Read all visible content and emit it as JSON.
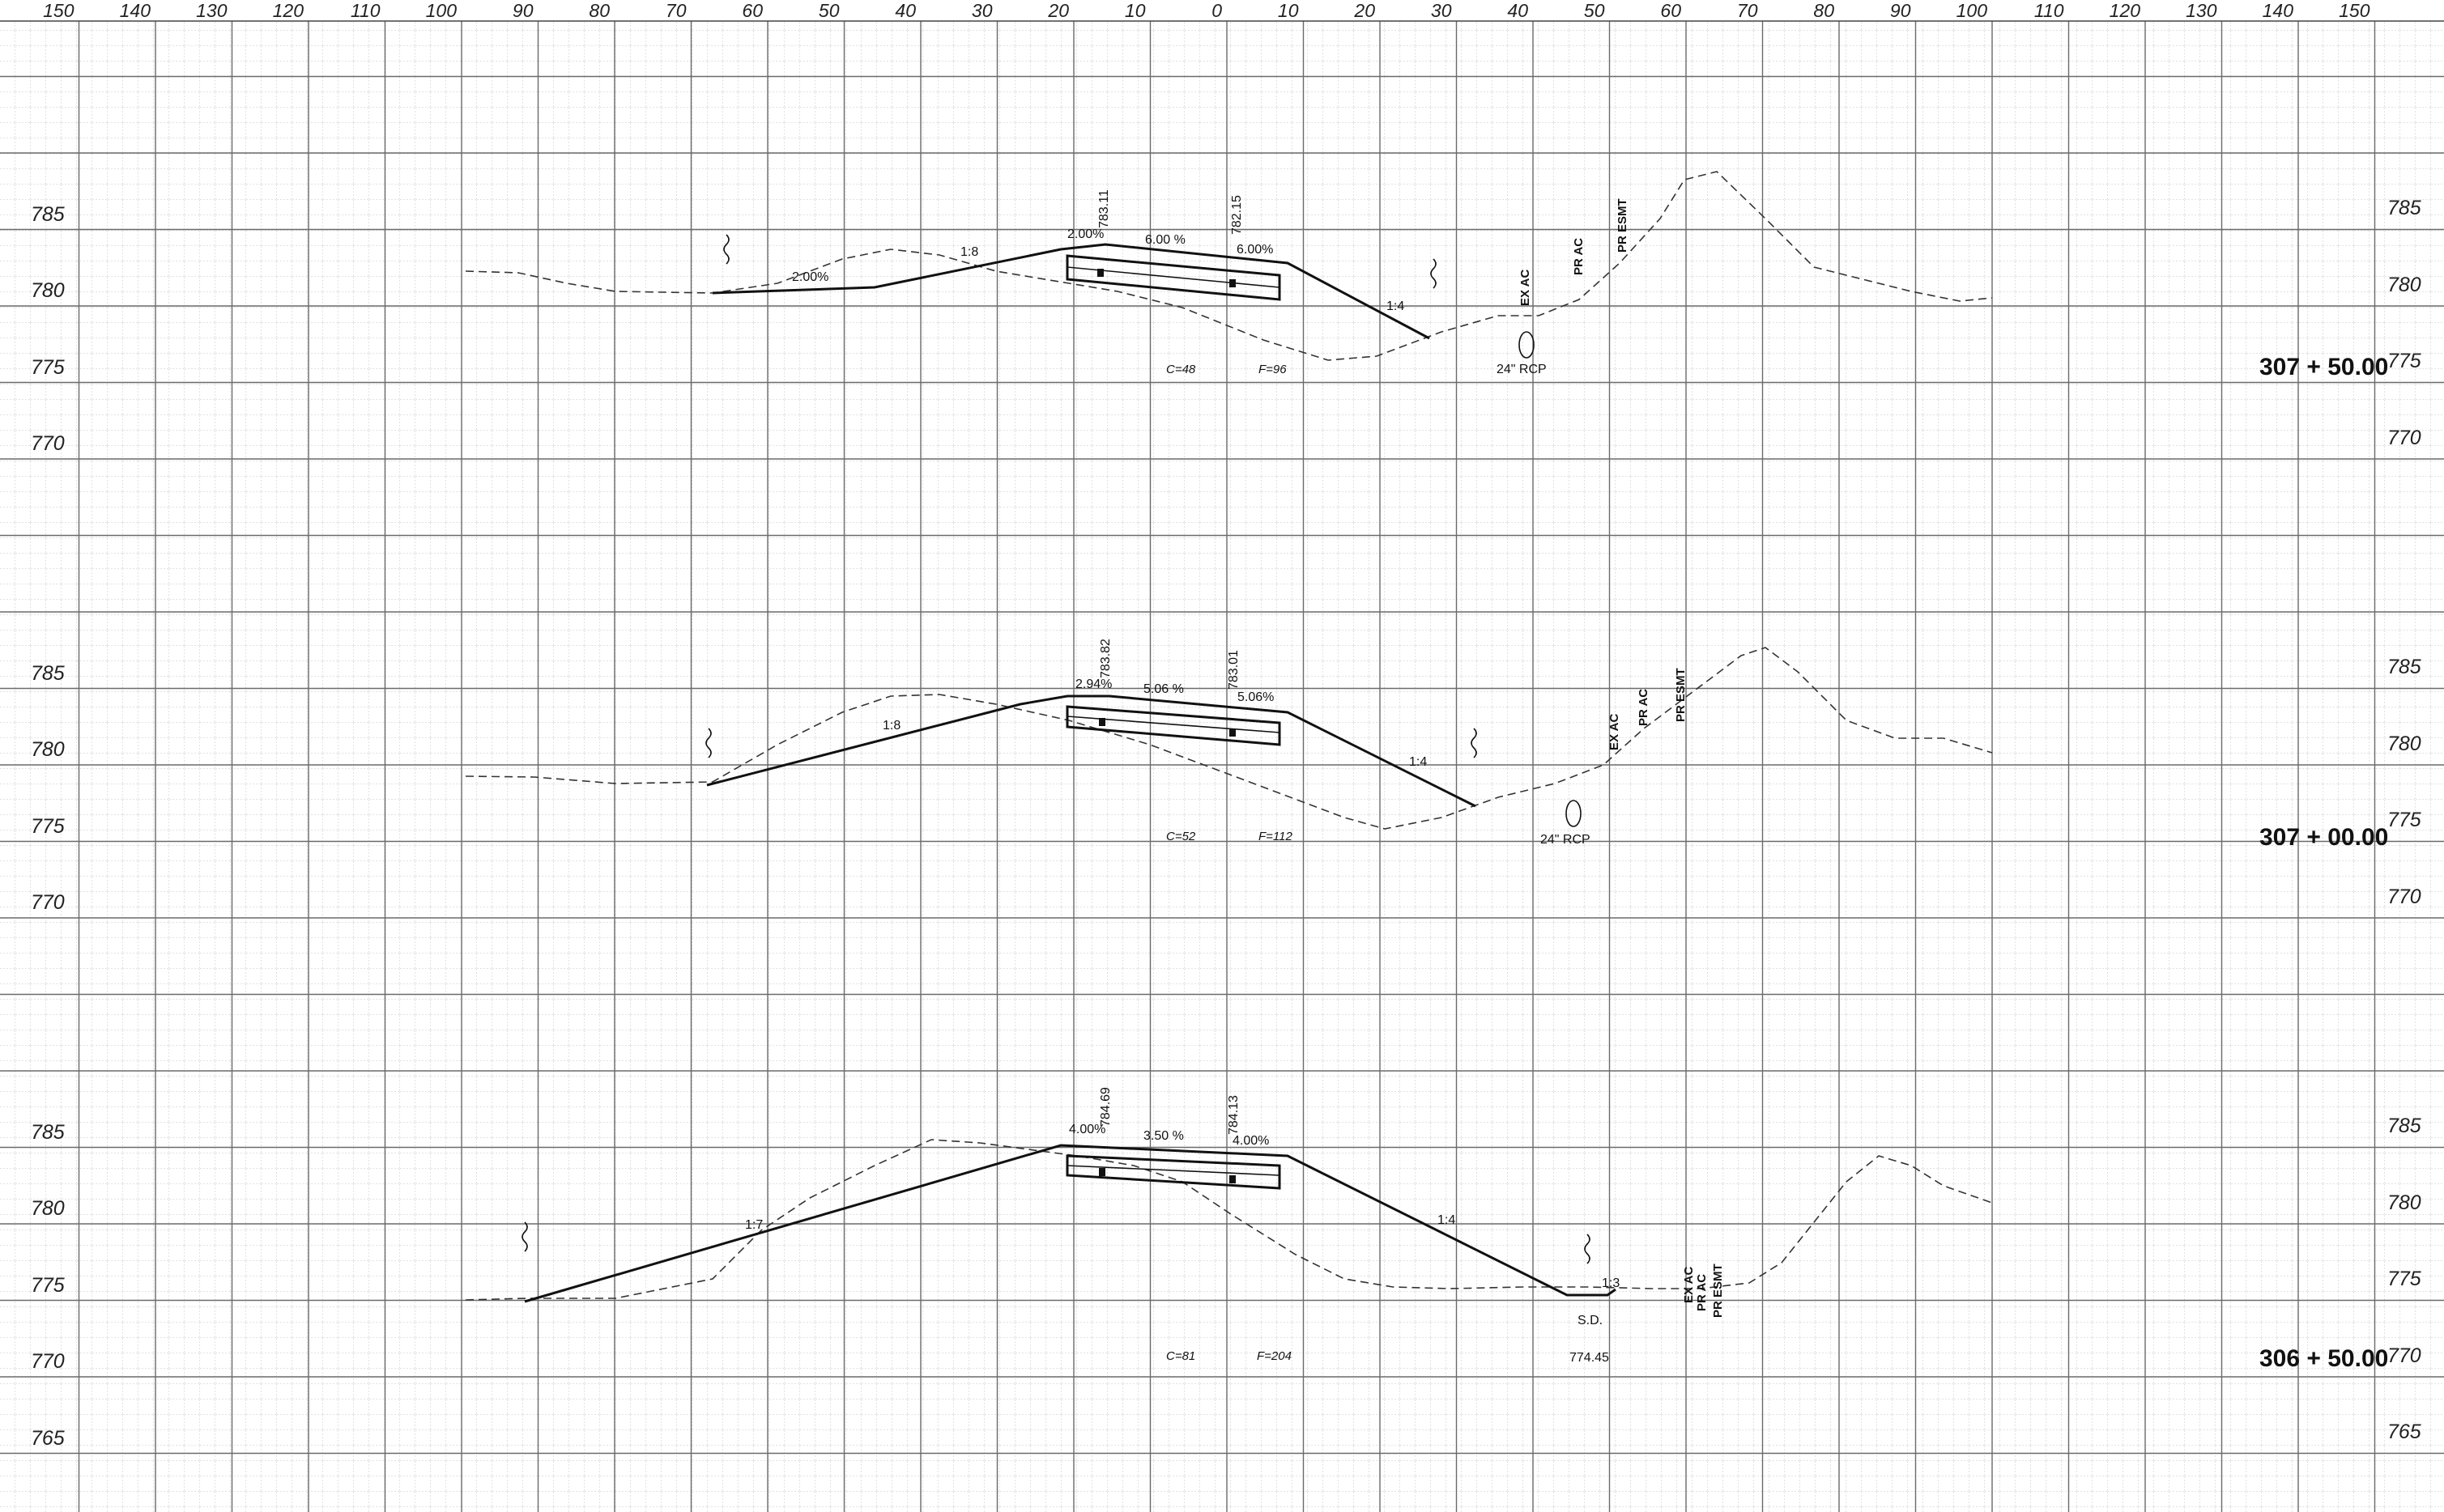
{
  "sheet": {
    "offset_scale": [
      "150",
      "140",
      "130",
      "120",
      "110",
      "100",
      "90",
      "80",
      "70",
      "60",
      "50",
      "40",
      "30",
      "20",
      "10",
      "0",
      "10",
      "20",
      "30",
      "40",
      "50",
      "60",
      "70",
      "80",
      "90",
      "100",
      "110",
      "120",
      "130",
      "140",
      "150"
    ]
  },
  "sections": [
    {
      "station": "307 + 50.00",
      "elevations": [
        "785",
        "780",
        "775",
        "770"
      ],
      "slopes": {
        "cross_a": "2.00%",
        "cross_b": "6.00 %",
        "cross_c": "6.00%",
        "left_far": "2.00%",
        "fill": "1:8",
        "cut": "1:4"
      },
      "grades": {
        "left": "783.11",
        "right": "782.15"
      },
      "labels": {
        "pipe": "24\" RCP",
        "ex_ac": "EX AC",
        "pr_ac": "PR AC",
        "pr_esmt": "PR ESMT"
      },
      "quantities": {
        "cut": "C=48",
        "fill": "F=96"
      }
    },
    {
      "station": "307 + 00.00",
      "elevations": [
        "785",
        "780",
        "775",
        "770"
      ],
      "slopes": {
        "cross_a": "2.94%",
        "cross_b": "5.06 %",
        "cross_c": "5.06%",
        "fill": "1:8",
        "cut": "1:4"
      },
      "grades": {
        "left": "783.82",
        "right": "783.01"
      },
      "labels": {
        "pipe": "24\" RCP",
        "ex_ac": "EX AC",
        "pr_ac": "PR AC",
        "pr_esmt": "PR ESMT"
      },
      "quantities": {
        "cut": "C=52",
        "fill": "F=112"
      }
    },
    {
      "station": "306 + 50.00",
      "elevations": [
        "785",
        "780",
        "775",
        "770",
        "765"
      ],
      "slopes": {
        "cross_a": "4.00%",
        "cross_b": "3.50 %",
        "cross_c": "4.00%",
        "fill": "1:7",
        "cut": "1:4",
        "ditch": "1:3"
      },
      "grades": {
        "left": "784.69",
        "right": "784.13"
      },
      "labels": {
        "ditch": "S.D.",
        "ditch_elev": "774.45",
        "ex_ac": "EX AC",
        "pr_ac": "PR AC",
        "pr_esmt": "PR ESMT"
      },
      "quantities": {
        "cut": "C=81",
        "fill": "F=204"
      }
    }
  ]
}
